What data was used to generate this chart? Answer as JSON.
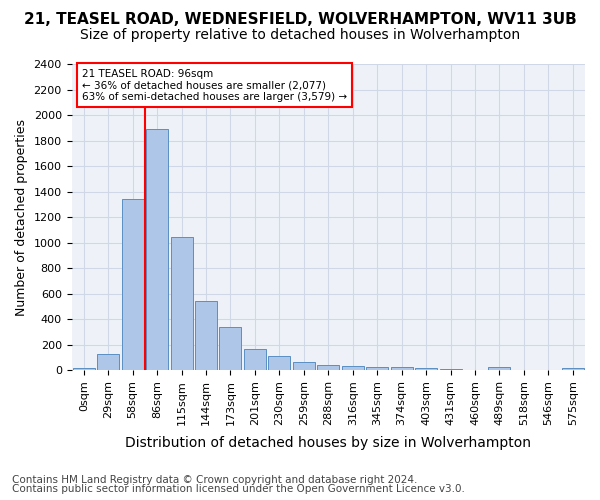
{
  "title1": "21, TEASEL ROAD, WEDNESFIELD, WOLVERHAMPTON, WV11 3UB",
  "title2": "Size of property relative to detached houses in Wolverhampton",
  "xlabel": "Distribution of detached houses by size in Wolverhampton",
  "ylabel": "Number of detached properties",
  "footer1": "Contains HM Land Registry data © Crown copyright and database right 2024.",
  "footer2": "Contains public sector information licensed under the Open Government Licence v3.0.",
  "annotation_title": "21 TEASEL ROAD: 96sqm",
  "annotation_line1": "← 36% of detached houses are smaller (2,077)",
  "annotation_line2": "63% of semi-detached houses are larger (3,579) →",
  "bar_values": [
    15,
    125,
    1340,
    1890,
    1040,
    540,
    335,
    165,
    110,
    60,
    40,
    30,
    25,
    20,
    15,
    5,
    0,
    20,
    0,
    0,
    15
  ],
  "categories": [
    "0sqm",
    "29sqm",
    "58sqm",
    "86sqm",
    "115sqm",
    "144sqm",
    "173sqm",
    "201sqm",
    "230sqm",
    "259sqm",
    "288sqm",
    "316sqm",
    "345sqm",
    "374sqm",
    "403sqm",
    "431sqm",
    "460sqm",
    "489sqm",
    "518sqm",
    "546sqm",
    "575sqm"
  ],
  "bar_color": "#aec6e8",
  "bar_edge_color": "#5a8fc2",
  "grid_color": "#d0d8e8",
  "background_color": "#eef2f8",
  "vline_x_index": 3,
  "vline_color": "red",
  "ylim": [
    0,
    2400
  ],
  "yticks": [
    0,
    200,
    400,
    600,
    800,
    1000,
    1200,
    1400,
    1600,
    1800,
    2000,
    2200,
    2400
  ],
  "title1_fontsize": 11,
  "title2_fontsize": 10,
  "ylabel_fontsize": 9,
  "xlabel_fontsize": 10,
  "tick_fontsize": 8,
  "footer_fontsize": 7.5,
  "annotation_fontsize": 7.5
}
